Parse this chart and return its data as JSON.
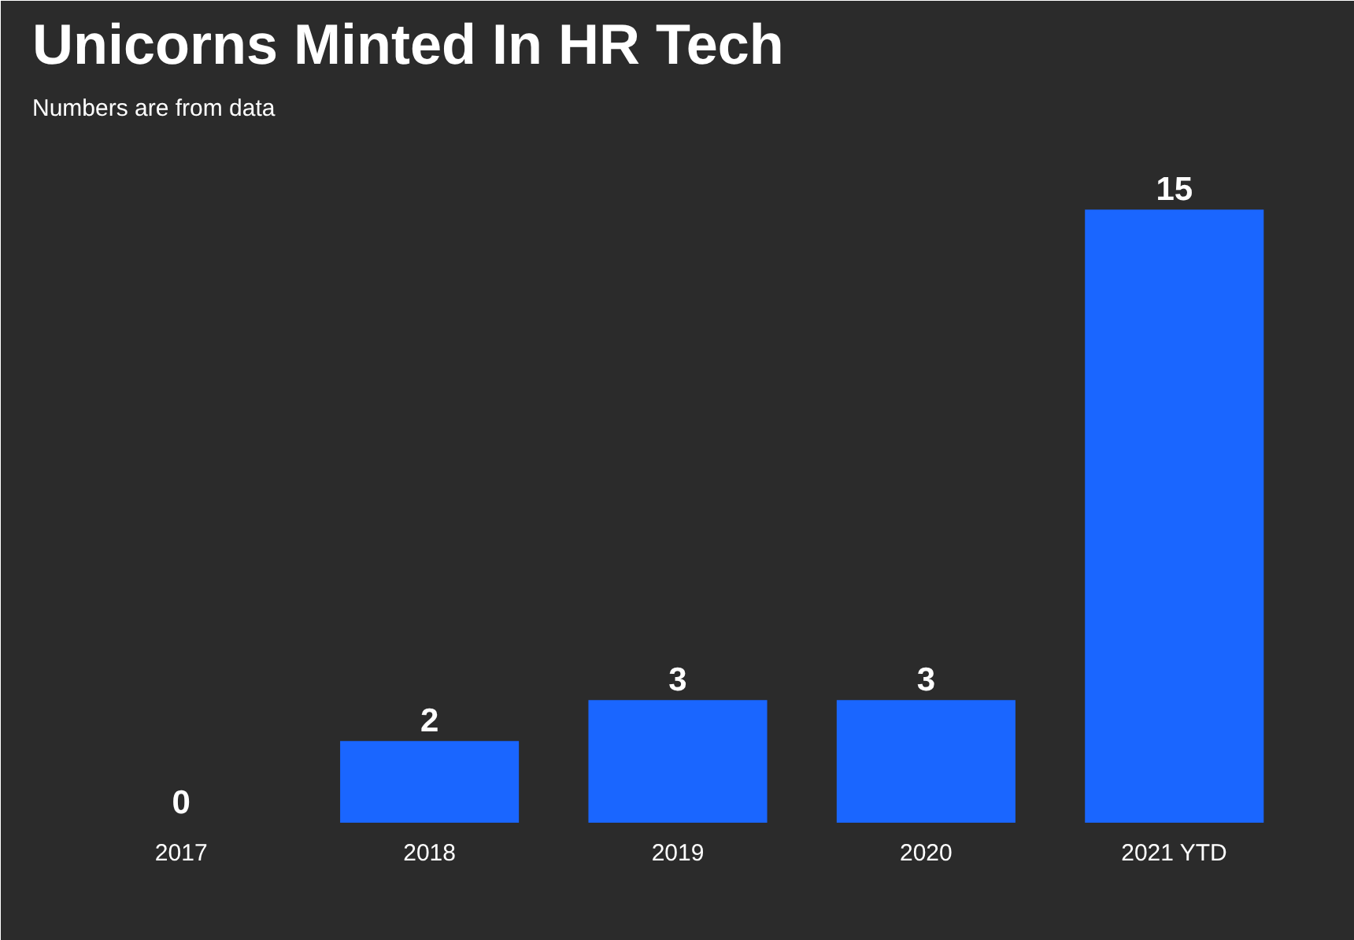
{
  "chart_data": {
    "type": "bar",
    "title": "Unicorns Minted In HR Tech",
    "subtitle": "Numbers are from data",
    "categories": [
      "2017",
      "2018",
      "2019",
      "2020",
      "2021 YTD"
    ],
    "values": [
      0,
      2,
      3,
      3,
      15
    ],
    "color": "#1a66ff",
    "data_labels": true
  }
}
